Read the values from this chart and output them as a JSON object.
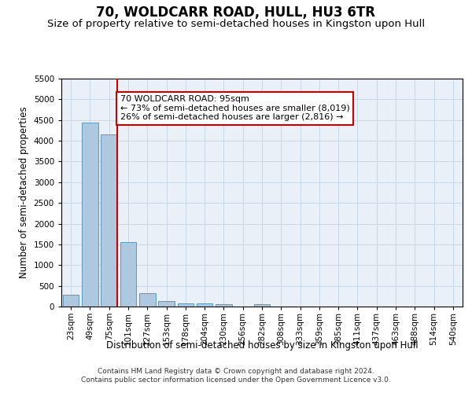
{
  "title": "70, WOLDCARR ROAD, HULL, HU3 6TR",
  "subtitle": "Size of property relative to semi-detached houses in Kingston upon Hull",
  "xlabel": "Distribution of semi-detached houses by size in Kingston upon Hull",
  "ylabel": "Number of semi-detached properties",
  "footer_line1": "Contains HM Land Registry data © Crown copyright and database right 2024.",
  "footer_line2": "Contains public sector information licensed under the Open Government Licence v3.0.",
  "categories": [
    "23sqm",
    "49sqm",
    "75sqm",
    "101sqm",
    "127sqm",
    "153sqm",
    "178sqm",
    "204sqm",
    "230sqm",
    "256sqm",
    "282sqm",
    "308sqm",
    "333sqm",
    "359sqm",
    "385sqm",
    "411sqm",
    "437sqm",
    "463sqm",
    "488sqm",
    "514sqm",
    "540sqm"
  ],
  "values": [
    280,
    4430,
    4160,
    1560,
    320,
    130,
    80,
    70,
    60,
    0,
    60,
    0,
    0,
    0,
    0,
    0,
    0,
    0,
    0,
    0,
    0
  ],
  "bar_color": "#aec8e0",
  "bar_edge_color": "#5a9abf",
  "annotation_text_line1": "70 WOLDCARR ROAD: 95sqm",
  "annotation_text_line2": "← 73% of semi-detached houses are smaller (8,019)",
  "annotation_text_line3": "26% of semi-detached houses are larger (2,816) →",
  "annotation_box_color": "#ffffff",
  "annotation_box_edge_color": "#cc0000",
  "red_line_color": "#cc0000",
  "ylim": [
    0,
    5500
  ],
  "yticks": [
    0,
    500,
    1000,
    1500,
    2000,
    2500,
    3000,
    3500,
    4000,
    4500,
    5000,
    5500
  ],
  "grid_color": "#c8d8e8",
  "background_color": "#eaf0f8",
  "title_fontsize": 12,
  "subtitle_fontsize": 9.5,
  "axis_label_fontsize": 8.5,
  "tick_fontsize": 7.5,
  "annotation_fontsize": 8,
  "footer_fontsize": 6.5
}
